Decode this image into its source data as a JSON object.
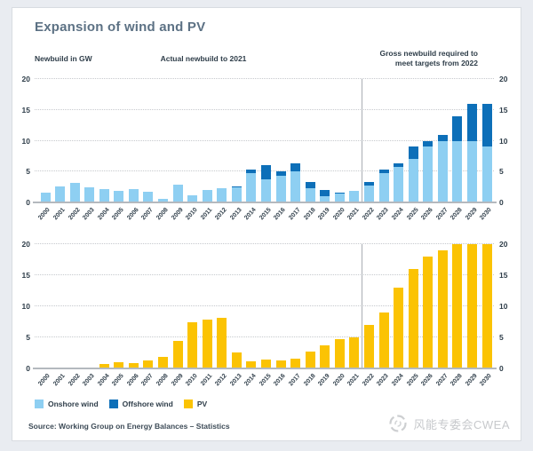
{
  "title": "Expansion of wind and PV",
  "header": {
    "unit_label": "Newbuild in GW",
    "actual_label": "Actual newbuild to 2021",
    "required_label_line1": "Gross newbuild required to",
    "required_label_line2": "meet targets from 2022"
  },
  "legend": [
    {
      "label": "Onshore wind",
      "color": "#8ecff2"
    },
    {
      "label": "Offshore wind",
      "color": "#0d6fb8"
    },
    {
      "label": "PV",
      "color": "#fbc303"
    }
  ],
  "source": "Source: Working Group on Energy Balances – Statistics",
  "watermark_text": "风能专委会CWEA",
  "colors": {
    "onshore": "#8ecff2",
    "offshore": "#0d6fb8",
    "pv": "#fbc303",
    "title": "#5c7184",
    "axis_text": "#2e3d49",
    "gridline": "#c6c9cd",
    "divider": "#a9aeb4",
    "page_bg": "#e9ecf1",
    "watermark": "#c7c9cc"
  },
  "chart_data": [
    {
      "type": "bar",
      "stacked": true,
      "title": "Wind newbuild in GW",
      "categories": [
        "2000",
        "2001",
        "2002",
        "2003",
        "2004",
        "2005",
        "2006",
        "2007",
        "2008",
        "2009",
        "2010",
        "2011",
        "2012",
        "2013",
        "2014",
        "2015",
        "2016",
        "2017",
        "2018",
        "2019",
        "2020",
        "2021",
        "2022",
        "2023",
        "2024",
        "2025",
        "2026",
        "2027",
        "2028",
        "2029",
        "2030"
      ],
      "series": [
        {
          "name": "Onshore wind",
          "color": "#8ecff2",
          "values": [
            1.6,
            2.6,
            3.2,
            2.5,
            2.1,
            1.9,
            2.2,
            1.7,
            0.6,
            2.9,
            1.2,
            2.0,
            2.3,
            2.4,
            4.8,
            3.7,
            4.3,
            5.0,
            2.3,
            1.0,
            1.4,
            1.9,
            2.7,
            4.7,
            5.7,
            7.0,
            9.0,
            10.0,
            10.0,
            10.0,
            9.0
          ]
        },
        {
          "name": "Offshore wind",
          "color": "#0d6fb8",
          "values": [
            0,
            0,
            0,
            0,
            0,
            0,
            0,
            0,
            0,
            0,
            0,
            0,
            0,
            0.2,
            0.5,
            2.3,
            0.7,
            1.3,
            1.0,
            1.0,
            0.2,
            0,
            0.6,
            0.6,
            0.6,
            2.0,
            1.0,
            1.0,
            4.0,
            6.0,
            7.0
          ]
        }
      ],
      "ylim": [
        0,
        20
      ],
      "yticks": [
        0,
        5,
        10,
        15,
        20
      ],
      "grid": "dotted",
      "divider_after": "2021"
    },
    {
      "type": "bar",
      "stacked": false,
      "title": "PV newbuild in GW",
      "categories": [
        "2000",
        "2001",
        "2002",
        "2003",
        "2004",
        "2005",
        "2006",
        "2007",
        "2008",
        "2009",
        "2010",
        "2011",
        "2012",
        "2013",
        "2014",
        "2015",
        "2016",
        "2017",
        "2018",
        "2019",
        "2020",
        "2021",
        "2022",
        "2023",
        "2024",
        "2025",
        "2026",
        "2027",
        "2028",
        "2029",
        "2030"
      ],
      "series": [
        {
          "name": "PV",
          "color": "#fbc303",
          "values": [
            0.05,
            0.1,
            0.1,
            0.15,
            0.65,
            0.95,
            0.85,
            1.3,
            1.9,
            4.4,
            7.4,
            7.9,
            8.2,
            2.6,
            1.2,
            1.4,
            1.3,
            1.6,
            2.7,
            3.7,
            4.7,
            5.0,
            7.0,
            9.0,
            13.0,
            16.0,
            18.0,
            19.0,
            20.0,
            20.0,
            20.0
          ]
        }
      ],
      "ylim": [
        0,
        20
      ],
      "yticks": [
        0,
        5,
        10,
        15,
        20
      ],
      "grid": "dotted",
      "divider_after": "2021"
    }
  ]
}
